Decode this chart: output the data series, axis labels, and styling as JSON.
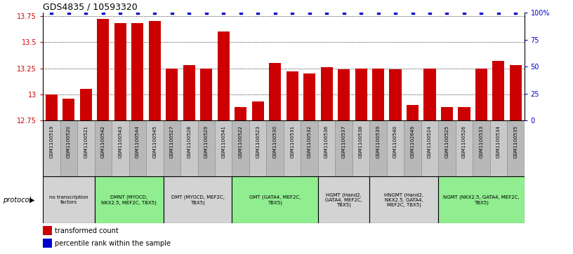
{
  "title": "GDS4835 / 10593320",
  "samples": [
    "GSM1100519",
    "GSM1100520",
    "GSM1100521",
    "GSM1100542",
    "GSM1100543",
    "GSM1100544",
    "GSM1100545",
    "GSM1100527",
    "GSM1100528",
    "GSM1100529",
    "GSM1100541",
    "GSM1100522",
    "GSM1100523",
    "GSM1100530",
    "GSM1100531",
    "GSM1100532",
    "GSM1100536",
    "GSM1100537",
    "GSM1100538",
    "GSM1100539",
    "GSM1100540",
    "GSM1102649",
    "GSM1100524",
    "GSM1100525",
    "GSM1100526",
    "GSM1100533",
    "GSM1100534",
    "GSM1100535"
  ],
  "bar_values": [
    13.0,
    12.96,
    13.05,
    13.72,
    13.68,
    13.68,
    13.7,
    13.25,
    13.28,
    13.25,
    13.6,
    12.88,
    12.93,
    13.3,
    13.22,
    13.2,
    13.26,
    13.24,
    13.25,
    13.25,
    13.24,
    12.9,
    13.25,
    12.88,
    12.88,
    13.25,
    13.32,
    13.28
  ],
  "percentile_values": [
    100,
    100,
    100,
    100,
    100,
    100,
    100,
    100,
    100,
    100,
    100,
    100,
    100,
    100,
    100,
    100,
    100,
    100,
    100,
    100,
    100,
    100,
    100,
    100,
    100,
    100,
    100,
    100
  ],
  "bar_color": "#cc0000",
  "percentile_color": "#0000cc",
  "ymin": 12.75,
  "ymax": 13.78,
  "yticks": [
    12.75,
    13.0,
    13.25,
    13.5,
    13.75
  ],
  "ylabels": [
    "12.75",
    "13",
    "13.25",
    "13.5",
    "13.75"
  ],
  "right_yticks": [
    0,
    25,
    50,
    75,
    100
  ],
  "right_ylabels": [
    "0",
    "25",
    "50",
    "75",
    "100%"
  ],
  "protocol_groups": [
    {
      "label": "no transcription\nfactors",
      "start": 0,
      "end": 3,
      "color": "#d3d3d3"
    },
    {
      "label": "DMNT (MYOCD,\nNKX2.5, MEF2C, TBX5)",
      "start": 3,
      "end": 7,
      "color": "#90ee90"
    },
    {
      "label": "DMT (MYOCD, MEF2C,\nTBX5)",
      "start": 7,
      "end": 11,
      "color": "#d3d3d3"
    },
    {
      "label": "GMT (GATA4, MEF2C,\nTBX5)",
      "start": 11,
      "end": 16,
      "color": "#90ee90"
    },
    {
      "label": "HGMT (Hand2,\nGATA4, MEF2C,\nTBX5)",
      "start": 16,
      "end": 19,
      "color": "#d3d3d3"
    },
    {
      "label": "HNGMT (Hand2,\nNKX2.5, GATA4,\nMEF2C, TBX5)",
      "start": 19,
      "end": 23,
      "color": "#d3d3d3"
    },
    {
      "label": "NGMT (NKX2.5, GATA4, MEF2C,\nTBX5)",
      "start": 23,
      "end": 28,
      "color": "#90ee90"
    }
  ],
  "protocol_label": "protocol",
  "cell_color_odd": "#c8c8c8",
  "cell_color_even": "#b8b8b8",
  "fig_width": 8.16,
  "fig_height": 3.63,
  "dpi": 100
}
